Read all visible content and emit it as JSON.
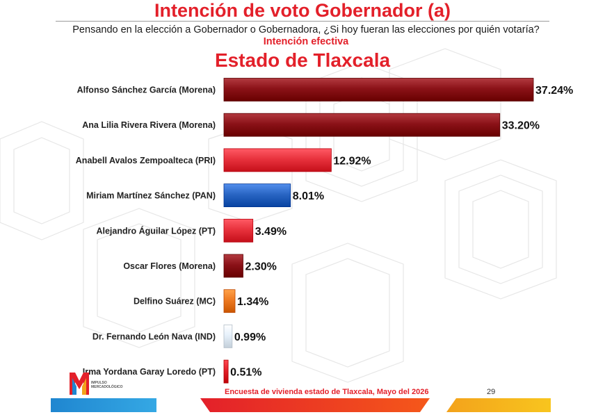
{
  "header": {
    "title": "Intención de  voto Gobernador (a)",
    "question": "Pensando en la elección a Gobernador o Gobernadora, ¿Si hoy fueran las elecciones por quién votaría?",
    "question_emphasis": "Intención efectiva",
    "subtitle": "Estado de Tlaxcala"
  },
  "chart_data": {
    "type": "bar",
    "orientation": "horizontal",
    "categories": [
      "Alfonso Sánchez García (Morena)",
      "Ana Lilia Rivera Rivera (Morena)",
      "Anabell Avalos Zempoalteca (PRI)",
      "Miriam Martínez Sánchez (PAN)",
      "Alejandro Águilar López (PT)",
      "Oscar Flores  (Morena)",
      "Delfino Suárez (MC)",
      "Dr. Fernando León Nava (IND)",
      "Irma Yordana Garay Loredo (PT)"
    ],
    "values": [
      37.24,
      33.2,
      12.92,
      8.01,
      3.49,
      2.3,
      1.34,
      0.99,
      0.51
    ],
    "value_labels": [
      "37.24%",
      "33.20%",
      "12.92%",
      "8.01%",
      "3.49%",
      "2.30%",
      "1.34%",
      "0.99%",
      "0.51%"
    ],
    "bar_colors": [
      "#8b1218",
      "#8b1218",
      "#e8323d",
      "#2a66c4",
      "#e8323d",
      "#8b1218",
      "#ee7a22",
      "#e6f1fb",
      "#e3202a"
    ],
    "title": "",
    "xlabel": "",
    "ylabel": "",
    "xlim": [
      0,
      40
    ],
    "grid": false,
    "legend": "none"
  },
  "footer": {
    "survey": "Encuesta de vivienda estado de Tlaxcala, Mayo  del 2026",
    "page": "29",
    "logo_text_1": "IMPULSO",
    "logo_text_2": "MERCADOLÓGICO"
  },
  "colors": {
    "accent": "#e3202a",
    "morena": "#8b1218",
    "pan": "#2a66c4",
    "mc": "#ee7a22"
  }
}
